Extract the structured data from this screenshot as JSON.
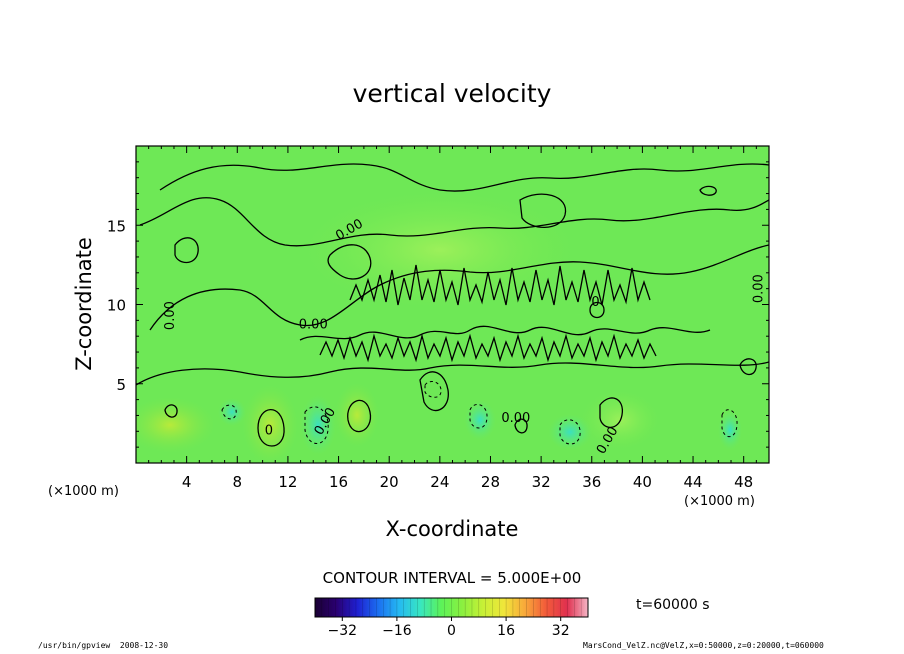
{
  "chart_data": {
    "type": "heatmap",
    "title": "vertical velocity",
    "xlabel": "X-coordinate",
    "ylabel": "Z-coordinate",
    "x_unit_left": "(×1000 m)",
    "x_unit_right": "(×1000 m)",
    "xlim": [
      0,
      50
    ],
    "ylim": [
      0,
      20
    ],
    "x_ticks": [
      4,
      8,
      12,
      16,
      20,
      24,
      28,
      32,
      36,
      40,
      44,
      48
    ],
    "y_ticks": [
      5,
      10,
      15
    ],
    "contour_interval_text": "CONTOUR INTERVAL = 5.000E+00",
    "time_text": "t=60000 s",
    "colorbar": {
      "range": [
        -40,
        40
      ],
      "ticks": [
        -32,
        -16,
        0,
        16,
        32
      ],
      "colors": [
        "#1a0033",
        "#2a0070",
        "#1f1fd0",
        "#1b6ef0",
        "#25b9f2",
        "#38e6c2",
        "#5cf25a",
        "#8af040",
        "#c7f036",
        "#f0e63a",
        "#f8a83a",
        "#f25b3a",
        "#e0304f",
        "#f4b6c6"
      ]
    },
    "contour_labels": [
      {
        "x": 3.0,
        "y": 9.3,
        "text": "0.00",
        "rot": -90
      },
      {
        "x": 14.0,
        "y": 8.5,
        "text": "0.00",
        "rot": 0
      },
      {
        "x": 15.2,
        "y": 2.5,
        "text": "0.00",
        "rot": -60
      },
      {
        "x": 17.0,
        "y": 14.5,
        "text": "0.00",
        "rot": -30
      },
      {
        "x": 30.0,
        "y": 2.6,
        "text": "0.00",
        "rot": 0
      },
      {
        "x": 37.5,
        "y": 1.3,
        "text": "0.00",
        "rot": -60
      },
      {
        "x": 49.5,
        "y": 11.0,
        "text": "0.00",
        "rot": -90
      },
      {
        "x": 10.5,
        "y": 1.8,
        "text": "0",
        "rot": 0
      },
      {
        "x": 36.3,
        "y": 9.9,
        "text": "0",
        "rot": 0
      }
    ]
  },
  "footer": {
    "left": "/usr/bin/gpview  2008-12-30",
    "right": "MarsCond_VelZ.nc@VelZ,x=0:50000,z=0:20000,t=060000"
  }
}
